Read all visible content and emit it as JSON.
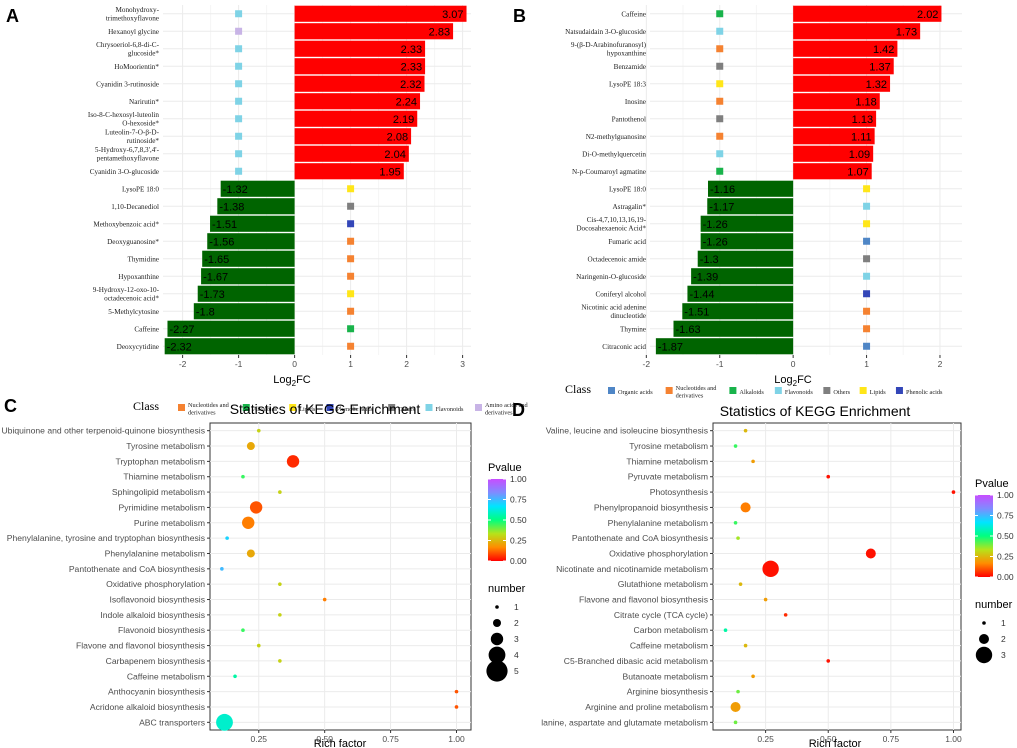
{
  "colors": {
    "up": "#ff0000",
    "down": "#006400",
    "grid": "#ebebeb",
    "panel_bg": "#ffffff",
    "class": {
      "Nucleotides and derivatives": "#f58231",
      "Alkaloids": "#19b34b",
      "Lipids": "#ffe619",
      "Phenolic acids": "#3346b8",
      "Others": "#7f7f7f",
      "Flavonoids": "#7fd3e6",
      "Amino acids and derivatives": "#c8b4e6",
      "Organic acids": "#4f86c6"
    },
    "pvalue_gradient": [
      "#ff0000",
      "#ff8c00",
      "#b6e31a",
      "#00ff7f",
      "#00e5ff",
      "#7f8cff",
      "#c84dff"
    ]
  },
  "chart_data": [
    {
      "id": "A",
      "type": "bar",
      "panel_label": "A",
      "xlabel_main": "Log",
      "xlabel_sub": "2",
      "xlabel_end": "FC",
      "xlim": [
        -2.35,
        3.15
      ],
      "xticks": [
        -2,
        -1,
        0,
        1,
        2,
        3
      ],
      "class_marker_x": 1,
      "categories": [
        "Monohydroxy-trimethoxyflavone",
        "Hexanoyl glycine",
        "Chrysoeriol-6,8-di-C-glucoside*",
        "HoMoorientin*",
        "Cyanidin 3-rutinoside",
        "Narirutin*",
        "Iso-8-C-hexosyl-luteolin O-hexoside*",
        "Luteolin-7-O-β-D-rutinoside*",
        "5-Hydroxy-6,7,8,3',4'-pentamethoxyflavone",
        "Cyanidin 3-O-glucoside",
        "LysoPE 18:0",
        "1,10-Decanediol",
        "Methoxybenzoic acid*",
        "Deoxyguanosine*",
        "Thymidine",
        "Hypoxanthine",
        "9-Hydroxy-12-oxo-10-octadecenoic acid*",
        "5-Methylcytosine",
        "Caffeine",
        "Deoxycytidine"
      ],
      "label_lines": [
        [
          "Monohydroxy-",
          "trimethoxyflavone"
        ],
        [
          "Hexanoyl glycine"
        ],
        [
          "Chrysoeriol-6,8-di-C-",
          "glucoside*"
        ],
        [
          "HoMoorientin*"
        ],
        [
          "Cyanidin 3-rutinoside"
        ],
        [
          "Narirutin*"
        ],
        [
          "Iso-8-C-hexosyl-luteolin",
          "O-hexoside*"
        ],
        [
          "Luteolin-7-O-β-D-",
          "rutinoside*"
        ],
        [
          "5-Hydroxy-6,7,8,3',4'-",
          "pentamethoxyflavone"
        ],
        [
          "Cyanidin 3-O-glucoside"
        ],
        [
          "LysoPE 18:0"
        ],
        [
          "1,10-Decanediol"
        ],
        [
          "Methoxybenzoic acid*"
        ],
        [
          "Deoxyguanosine*"
        ],
        [
          "Thymidine"
        ],
        [
          "Hypoxanthine"
        ],
        [
          "9-Hydroxy-12-oxo-10-",
          "octadecenoic acid*"
        ],
        [
          "5-Methylcytosine"
        ],
        [
          "Caffeine"
        ],
        [
          "Deoxycytidine"
        ]
      ],
      "values": [
        3.07,
        2.83,
        2.33,
        2.33,
        2.32,
        2.24,
        2.19,
        2.08,
        2.04,
        1.95,
        -1.32,
        -1.38,
        -1.51,
        -1.56,
        -1.65,
        -1.67,
        -1.73,
        -1.8,
        -2.27,
        -2.32
      ],
      "value_labels": [
        "3.07",
        "2.83",
        "2.33",
        "2.33",
        "2.32",
        "2.24",
        "2.19",
        "2.08",
        "2.04",
        "1.95",
        "-1.32",
        "-1.38",
        "-1.51",
        "-1.56",
        "-1.65",
        "-1.67",
        "-1.73",
        "-1.8",
        "-2.27",
        "-2.32"
      ],
      "classes": [
        "Flavonoids",
        "Amino acids and derivatives",
        "Flavonoids",
        "Flavonoids",
        "Flavonoids",
        "Flavonoids",
        "Flavonoids",
        "Flavonoids",
        "Flavonoids",
        "Flavonoids",
        "Lipids",
        "Others",
        "Phenolic acids",
        "Nucleotides and derivatives",
        "Nucleotides and derivatives",
        "Nucleotides and derivatives",
        "Lipids",
        "Nucleotides and derivatives",
        "Alkaloids",
        "Nucleotides and derivatives"
      ],
      "legend": {
        "title": "Class",
        "items": [
          {
            "label": [
              "Nucleotides and",
              "derivatives"
            ],
            "class": "Nucleotides and derivatives"
          },
          {
            "label": [
              "Alkaloids"
            ],
            "class": "Alkaloids"
          },
          {
            "label": [
              "Lipids"
            ],
            "class": "Lipids"
          },
          {
            "label": [
              "Phenolic acids"
            ],
            "class": "Phenolic acids"
          },
          {
            "label": [
              "Others"
            ],
            "class": "Others"
          },
          {
            "label": [
              "Flavonoids"
            ],
            "class": "Flavonoids"
          },
          {
            "label": [
              "Amino acids and",
              "derivatives"
            ],
            "class": "Amino acids and derivatives"
          }
        ]
      }
    },
    {
      "id": "B",
      "type": "bar",
      "panel_label": "B",
      "xlabel_main": "Log",
      "xlabel_sub": "2",
      "xlabel_end": "FC",
      "xlim": [
        -1.95,
        2.3
      ],
      "xticks": [
        -2,
        -1,
        0,
        1,
        2
      ],
      "class_marker_x": 1,
      "categories": [
        "Caffeine",
        "Natsudaidain 3-O-glucoside",
        "9-(β-D-Arabinofuranosyl) hypoxanthine",
        "Benzamide",
        "LysoPE 18:3",
        "Inosine",
        "Pantothenol",
        "N2-methylguanosine",
        "Di-O-methylquercetin",
        "N-p-Coumaroyl agmatine",
        "LysoPE 18:0",
        "Astragalin*",
        "Cis-4,7,10,13,16,19-Docosahexaenoic Acid*",
        "Fumaric acid",
        "Octadecenoic amide",
        "Naringenin-O-glucoside",
        "Coniferyl alcohol",
        "Nicotinic acid adenine dinucleotide",
        "Thymine",
        "Citraconic acid"
      ],
      "label_lines": [
        [
          "Caffeine"
        ],
        [
          "Natsudaidain 3-O-glucoside"
        ],
        [
          "9-(β-D-Arabinofuranosyl)",
          "hypoxanthine"
        ],
        [
          "Benzamide"
        ],
        [
          "LysoPE 18:3"
        ],
        [
          "Inosine"
        ],
        [
          "Pantothenol"
        ],
        [
          "N2-methylguanosine"
        ],
        [
          "Di-O-methylquercetin"
        ],
        [
          "N-p-Coumaroyl agmatine"
        ],
        [
          "LysoPE 18:0"
        ],
        [
          "Astragalin*"
        ],
        [
          "Cis-4,7,10,13,16,19-",
          "Docosahexaenoic Acid*"
        ],
        [
          "Fumaric acid"
        ],
        [
          "Octadecenoic amide"
        ],
        [
          "Naringenin-O-glucoside"
        ],
        [
          "Coniferyl alcohol"
        ],
        [
          "Nicotinic acid adenine",
          "dinucleotide"
        ],
        [
          "Thymine"
        ],
        [
          "Citraconic acid"
        ]
      ],
      "values": [
        2.02,
        1.73,
        1.42,
        1.37,
        1.32,
        1.18,
        1.13,
        1.11,
        1.09,
        1.07,
        -1.16,
        -1.17,
        -1.26,
        -1.26,
        -1.3,
        -1.39,
        -1.44,
        -1.51,
        -1.63,
        -1.87
      ],
      "value_labels": [
        "2.02",
        "1.73",
        "1.42",
        "1.37",
        "1.32",
        "1.18",
        "1.13",
        "1.11",
        "1.09",
        "1.07",
        "-1.16",
        "-1.17",
        "-1.26",
        "-1.26",
        "-1.3",
        "-1.39",
        "-1.44",
        "-1.51",
        "-1.63",
        "-1.87"
      ],
      "classes": [
        "Alkaloids",
        "Flavonoids",
        "Nucleotides and derivatives",
        "Others",
        "Lipids",
        "Nucleotides and derivatives",
        "Others",
        "Nucleotides and derivatives",
        "Flavonoids",
        "Alkaloids",
        "Lipids",
        "Flavonoids",
        "Lipids",
        "Organic acids",
        "Others",
        "Flavonoids",
        "Phenolic acids",
        "Nucleotides and derivatives",
        "Nucleotides and derivatives",
        "Organic acids"
      ],
      "legend": {
        "title": "Class",
        "items": [
          {
            "label": [
              "Organic acids"
            ],
            "class": "Organic acids"
          },
          {
            "label": [
              "Nucleotides and",
              "derivatives"
            ],
            "class": "Nucleotides and derivatives"
          },
          {
            "label": [
              "Alkaloids"
            ],
            "class": "Alkaloids"
          },
          {
            "label": [
              "Flavonoids"
            ],
            "class": "Flavonoids"
          },
          {
            "label": [
              "Others"
            ],
            "class": "Others"
          },
          {
            "label": [
              "Lipids"
            ],
            "class": "Lipids"
          },
          {
            "label": [
              "Phenolic acids"
            ],
            "class": "Phenolic acids"
          }
        ]
      }
    },
    {
      "id": "C",
      "type": "scatter",
      "panel_label": "C",
      "title": "Statistics of KEGG Enrichment",
      "xlabel": "Rich factor",
      "xlim": [
        0.065,
        1.055
      ],
      "xticks": [
        0.25,
        0.5,
        0.75,
        1.0
      ],
      "xtick_labels": [
        "0.25",
        "0.50",
        "0.75",
        "1.00"
      ],
      "categories": [
        "Ubiquinone and other terpenoid-quinone biosynthesis",
        "Tyrosine metabolism",
        "Tryptophan metabolism",
        "Thiamine metabolism",
        "Sphingolipid metabolism",
        "Pyrimidine metabolism",
        "Purine metabolism",
        "Phenylalanine, tyrosine and tryptophan biosynthesis",
        "Phenylalanine metabolism",
        "Pantothenate and CoA biosynthesis",
        "Oxidative phosphorylation",
        "Isoflavonoid biosynthesis",
        "Indole alkaloid biosynthesis",
        "Flavonoid biosynthesis",
        "Flavone and flavonol biosynthesis",
        "Carbapenem biosynthesis",
        "Caffeine metabolism",
        "Anthocyanin biosynthesis",
        "Acridone alkaloid biosynthesis",
        "ABC transporters"
      ],
      "rich_factor": [
        0.25,
        0.22,
        0.38,
        0.19,
        0.33,
        0.24,
        0.21,
        0.13,
        0.22,
        0.11,
        0.33,
        0.5,
        0.33,
        0.19,
        0.25,
        0.33,
        0.16,
        1.0,
        1.0,
        0.12
      ],
      "number": [
        1,
        2,
        3,
        1,
        1,
        3,
        3,
        1,
        2,
        1,
        1,
        1,
        1,
        1,
        1,
        1,
        1,
        1,
        1,
        4
      ],
      "pvalue": [
        0.3,
        0.22,
        0.05,
        0.45,
        0.3,
        0.1,
        0.15,
        0.7,
        0.22,
        0.75,
        0.3,
        0.15,
        0.3,
        0.45,
        0.3,
        0.3,
        0.55,
        0.1,
        0.1,
        0.6
      ],
      "size_legend": {
        "title": "number",
        "values": [
          1,
          2,
          3,
          4,
          5
        ],
        "labels": [
          "1",
          "2",
          "3",
          "4",
          "5"
        ]
      },
      "color_legend": {
        "title": "Pvalue",
        "ticks": [
          "1.00",
          "0.75",
          "0.50",
          "0.25",
          "0.00"
        ],
        "range": [
          0,
          1
        ]
      }
    },
    {
      "id": "D",
      "type": "scatter",
      "panel_label": "D",
      "title": "Statistics of KEGG Enrichment",
      "xlabel": "Rich factor",
      "xlim": [
        0.04,
        1.03
      ],
      "xticks": [
        0.25,
        0.5,
        0.75,
        1.0
      ],
      "xtick_labels": [
        "0.25",
        "0.50",
        "0.75",
        "1.00"
      ],
      "categories": [
        "Valine, leucine and isoleucine biosynthesis",
        "Tyrosine metabolism",
        "Thiamine metabolism",
        "Pyruvate metabolism",
        "Photosynthesis",
        "Phenylpropanoid biosynthesis",
        "Phenylalanine metabolism",
        "Pantothenate and CoA biosynthesis",
        "Oxidative phosphorylation",
        "Nicotinate and nicotinamide metabolism",
        "Glutathione metabolism",
        "Flavone and flavonol biosynthesis",
        "Citrate cycle (TCA cycle)",
        "Carbon metabolism",
        "Caffeine metabolism",
        "C5-Branched dibasic acid metabolism",
        "Butanoate metabolism",
        "Arginine biosynthesis",
        "Arginine and proline metabolism",
        "Alanine, aspartate and glutamate metabolism"
      ],
      "label_texts": [
        "Valine, leucine and isoleucine biosynthesis",
        "Tyrosine metabolism",
        "Thiamine metabolism",
        "Pyruvate metabolism",
        "Photosynthesis",
        "Phenylpropanoid biosynthesis",
        "Phenylalanine metabolism",
        "Pantothenate and CoA biosynthesis",
        "Oxidative phosphorylation",
        "Nicotinate and nicotinamide metabolism",
        "Glutathione metabolism",
        "Flavone and flavonol biosynthesis",
        "Citrate cycle (TCA cycle)",
        "Carbon metabolism",
        "Caffeine metabolism",
        "C5-Branched dibasic acid metabolism",
        "Butanoate metabolism",
        "Arginine biosynthesis",
        "Arginine and proline metabolism",
        "lanine, aspartate and glutamate metabolism"
      ],
      "rich_factor": [
        0.17,
        0.13,
        0.2,
        0.5,
        1.0,
        0.17,
        0.13,
        0.14,
        0.67,
        0.27,
        0.15,
        0.25,
        0.33,
        0.09,
        0.17,
        0.5,
        0.2,
        0.14,
        0.13,
        0.13
      ],
      "number": [
        1,
        1,
        1,
        1,
        1,
        2,
        1,
        1,
        2,
        3,
        1,
        1,
        1,
        1,
        1,
        1,
        1,
        1,
        2,
        1
      ],
      "pvalue": [
        0.25,
        0.45,
        0.2,
        0.02,
        0.02,
        0.15,
        0.45,
        0.35,
        0.02,
        0.02,
        0.25,
        0.2,
        0.05,
        0.55,
        0.25,
        0.02,
        0.2,
        0.4,
        0.2,
        0.4
      ],
      "size_legend": {
        "title": "number",
        "values": [
          1,
          2,
          3
        ],
        "labels": [
          "1",
          "2",
          "3"
        ]
      },
      "color_legend": {
        "title": "Pvalue",
        "ticks": [
          "1.00",
          "0.75",
          "0.50",
          "0.25",
          "0.00"
        ],
        "range": [
          0,
          1
        ]
      }
    }
  ]
}
